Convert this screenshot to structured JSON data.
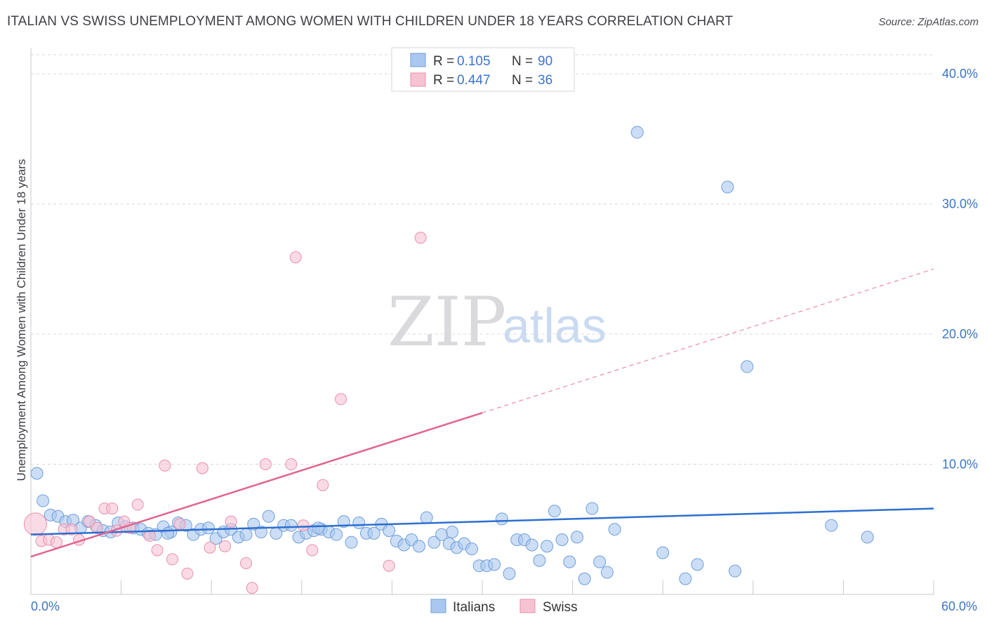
{
  "title": "ITALIAN VS SWISS UNEMPLOYMENT AMONG WOMEN WITH CHILDREN UNDER 18 YEARS CORRELATION CHART",
  "source": "Source: ZipAtlas.com",
  "watermark": {
    "zip": "ZIP",
    "atlas": "atlas"
  },
  "colors": {
    "italians_fill": "#aac8ef",
    "italians_stroke": "#6f9edb",
    "italians_line": "#2c6fcf",
    "swiss_fill": "#f6c3d3",
    "swiss_stroke": "#e98fab",
    "swiss_line": "#e0648f",
    "grid": "#d8d8de",
    "axis_label": "#3b74c7"
  },
  "legend_top": {
    "rows": [
      {
        "r_label": "R =",
        "r_value": "0.105",
        "n_label": "N =",
        "n_value": "90"
      },
      {
        "r_label": "R =",
        "r_value": "0.447",
        "n_label": "N =",
        "n_value": "36"
      }
    ]
  },
  "legend_bottom": {
    "items": [
      {
        "label": "Italians"
      },
      {
        "label": "Swiss"
      }
    ]
  },
  "chart_data": {
    "type": "scatter",
    "title": "ITALIAN VS SWISS UNEMPLOYMENT AMONG WOMEN WITH CHILDREN UNDER 18 YEARS CORRELATION CHART",
    "xlabel": "",
    "ylabel": "Unemployment Among Women with Children Under 18 years",
    "xlim": [
      0,
      60
    ],
    "ylim": [
      0,
      42
    ],
    "x_tick_labels": [
      {
        "value": 0,
        "label": "0.0%"
      },
      {
        "value": 60,
        "label": "60.0%"
      }
    ],
    "x_minor_ticks": [
      6,
      12,
      18,
      24,
      30,
      36,
      42,
      48,
      54
    ],
    "y_ticks": [
      {
        "value": 10,
        "label": "10.0%"
      },
      {
        "value": 20,
        "label": "20.0%"
      },
      {
        "value": 30,
        "label": "30.0%"
      },
      {
        "value": 40,
        "label": "40.0%"
      }
    ],
    "series": [
      {
        "name": "Italians",
        "R": 0.105,
        "N": 90,
        "trend": {
          "x0": 0,
          "y0": 4.6,
          "x1": 60,
          "y1": 6.6,
          "solid_to": 60
        },
        "points": [
          [
            0.4,
            9.3
          ],
          [
            0.8,
            7.2
          ],
          [
            1.3,
            6.1
          ],
          [
            1.8,
            6.0
          ],
          [
            2.3,
            5.6
          ],
          [
            2.8,
            5.7
          ],
          [
            3.3,
            5.1
          ],
          [
            3.8,
            5.6
          ],
          [
            4.3,
            5.3
          ],
          [
            4.8,
            4.9
          ],
          [
            5.3,
            4.8
          ],
          [
            5.8,
            5.5
          ],
          [
            6.3,
            5.2
          ],
          [
            6.8,
            5.1
          ],
          [
            7.3,
            5.0
          ],
          [
            7.8,
            4.7
          ],
          [
            8.3,
            4.6
          ],
          [
            8.8,
            5.2
          ],
          [
            9.3,
            4.8
          ],
          [
            9.8,
            5.5
          ],
          [
            10.3,
            5.3
          ],
          [
            10.8,
            4.6
          ],
          [
            11.3,
            5.0
          ],
          [
            11.8,
            5.1
          ],
          [
            12.3,
            4.3
          ],
          [
            12.8,
            4.8
          ],
          [
            13.3,
            5.0
          ],
          [
            13.8,
            4.4
          ],
          [
            14.3,
            4.6
          ],
          [
            14.8,
            5.4
          ],
          [
            15.3,
            4.8
          ],
          [
            15.8,
            6.0
          ],
          [
            16.3,
            4.7
          ],
          [
            16.8,
            5.3
          ],
          [
            17.3,
            5.3
          ],
          [
            17.8,
            4.4
          ],
          [
            18.3,
            4.7
          ],
          [
            18.8,
            4.9
          ],
          [
            19.3,
            5.0
          ],
          [
            19.8,
            4.8
          ],
          [
            20.3,
            4.6
          ],
          [
            20.8,
            5.6
          ],
          [
            21.3,
            4.0
          ],
          [
            21.8,
            5.5
          ],
          [
            22.3,
            4.7
          ],
          [
            22.8,
            4.7
          ],
          [
            23.3,
            5.4
          ],
          [
            23.8,
            4.9
          ],
          [
            24.3,
            4.1
          ],
          [
            24.8,
            3.8
          ],
          [
            25.3,
            4.2
          ],
          [
            25.8,
            3.7
          ],
          [
            26.3,
            5.9
          ],
          [
            26.8,
            4.0
          ],
          [
            27.3,
            4.6
          ],
          [
            27.8,
            3.9
          ],
          [
            28.3,
            3.6
          ],
          [
            28.8,
            3.9
          ],
          [
            29.3,
            3.5
          ],
          [
            29.8,
            2.2
          ],
          [
            30.3,
            2.2
          ],
          [
            30.8,
            2.3
          ],
          [
            31.3,
            5.8
          ],
          [
            31.8,
            1.6
          ],
          [
            32.3,
            4.2
          ],
          [
            32.8,
            4.2
          ],
          [
            33.3,
            3.8
          ],
          [
            33.8,
            2.6
          ],
          [
            34.3,
            3.7
          ],
          [
            34.8,
            6.4
          ],
          [
            35.3,
            4.2
          ],
          [
            35.8,
            2.5
          ],
          [
            36.3,
            4.4
          ],
          [
            36.8,
            1.2
          ],
          [
            37.3,
            6.6
          ],
          [
            37.8,
            2.5
          ],
          [
            38.3,
            1.7
          ],
          [
            38.8,
            5.0
          ],
          [
            40.3,
            35.5
          ],
          [
            42.0,
            3.2
          ],
          [
            43.5,
            1.2
          ],
          [
            44.3,
            2.3
          ],
          [
            46.3,
            31.3
          ],
          [
            46.8,
            1.8
          ],
          [
            47.6,
            17.5
          ],
          [
            53.2,
            5.3
          ],
          [
            55.6,
            4.4
          ],
          [
            28.0,
            4.8
          ],
          [
            19.1,
            5.1
          ],
          [
            9.1,
            4.7
          ]
        ]
      },
      {
        "name": "Swiss",
        "R": 0.447,
        "N": 36,
        "trend": {
          "x0": 0,
          "y0": 2.9,
          "x1": 60,
          "y1": 25.0,
          "solid_to": 30
        },
        "points": [
          [
            0.3,
            5.4
          ],
          [
            0.7,
            4.1
          ],
          [
            1.2,
            4.2
          ],
          [
            1.7,
            4.0
          ],
          [
            2.2,
            5.0
          ],
          [
            2.7,
            5.0
          ],
          [
            3.2,
            4.2
          ],
          [
            3.9,
            5.6
          ],
          [
            4.4,
            5.1
          ],
          [
            4.9,
            6.6
          ],
          [
            5.4,
            6.6
          ],
          [
            5.7,
            4.9
          ],
          [
            6.2,
            5.6
          ],
          [
            6.6,
            5.1
          ],
          [
            7.1,
            6.9
          ],
          [
            7.9,
            4.5
          ],
          [
            8.4,
            3.4
          ],
          [
            8.9,
            9.9
          ],
          [
            9.4,
            2.7
          ],
          [
            9.9,
            5.4
          ],
          [
            10.4,
            1.6
          ],
          [
            11.4,
            9.7
          ],
          [
            11.9,
            3.6
          ],
          [
            12.9,
            3.7
          ],
          [
            13.3,
            5.6
          ],
          [
            14.3,
            2.4
          ],
          [
            14.7,
            0.5
          ],
          [
            15.6,
            10.0
          ],
          [
            17.6,
            25.9
          ],
          [
            18.1,
            5.3
          ],
          [
            18.7,
            3.4
          ],
          [
            19.4,
            8.4
          ],
          [
            20.6,
            15.0
          ],
          [
            23.8,
            2.2
          ],
          [
            25.9,
            27.4
          ],
          [
            17.3,
            10.0
          ]
        ]
      }
    ]
  }
}
